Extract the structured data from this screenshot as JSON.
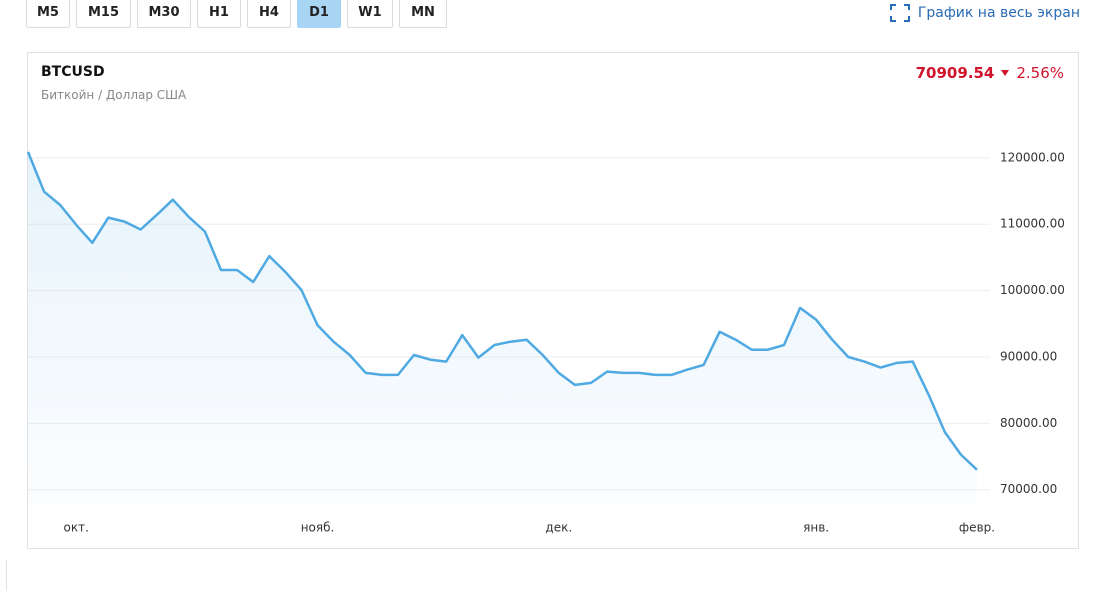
{
  "toolbar": {
    "buttons": [
      "M5",
      "M15",
      "M30",
      "H1",
      "H4",
      "D1",
      "W1",
      "MN"
    ],
    "active": "D1",
    "fullscreen": "График на весь экран"
  },
  "quote": {
    "symbol": "BTCUSD",
    "name": "Биткойн / Доллар США",
    "price": "70909.54",
    "change": "2.56%"
  },
  "chart_data": {
    "type": "line",
    "categories": [
      null,
      null,
      null,
      "окт.",
      null,
      null,
      null,
      null,
      null,
      null,
      null,
      null,
      null,
      null,
      null,
      null,
      null,
      null,
      "нояб.",
      null,
      null,
      null,
      null,
      null,
      null,
      null,
      null,
      null,
      null,
      null,
      null,
      null,
      null,
      "дек.",
      null,
      null,
      null,
      null,
      null,
      null,
      null,
      null,
      null,
      null,
      null,
      null,
      null,
      null,
      null,
      "янв.",
      null,
      null,
      null,
      null,
      null,
      null,
      null,
      null,
      null,
      "февр."
    ],
    "series": [
      {
        "name": "BTCUSD",
        "color": "#4fa9e3",
        "values": [
          120900,
          114900,
          112900,
          109900,
          107200,
          111000,
          110400,
          109200,
          111400,
          113700,
          111100,
          108900,
          103100,
          103100,
          101300,
          105200,
          102800,
          100100,
          94800,
          92300,
          90300,
          87600,
          87300,
          87300,
          90300,
          89600,
          89300,
          93300,
          89900,
          91800,
          92300,
          92600,
          90300,
          87600,
          85800,
          86100,
          87800,
          87600,
          87600,
          87300,
          87300,
          88100,
          88800,
          93800,
          92600,
          91100,
          91100,
          91800,
          97400,
          95600,
          92600,
          90000,
          89300,
          88400,
          89100,
          89300,
          84300,
          78700,
          75300,
          73000
        ]
      }
    ],
    "ylim": [
      67700,
      125700
    ],
    "yticks": [
      {
        "value": 70000,
        "label": "70000.00"
      },
      {
        "value": 80000,
        "label": "80000.00"
      },
      {
        "value": 90000,
        "label": "90000.00"
      },
      {
        "value": 100000,
        "label": "100000.00"
      },
      {
        "value": 110000,
        "label": "110000.00"
      },
      {
        "value": 120000,
        "label": "120000.00"
      }
    ],
    "grid": true
  }
}
